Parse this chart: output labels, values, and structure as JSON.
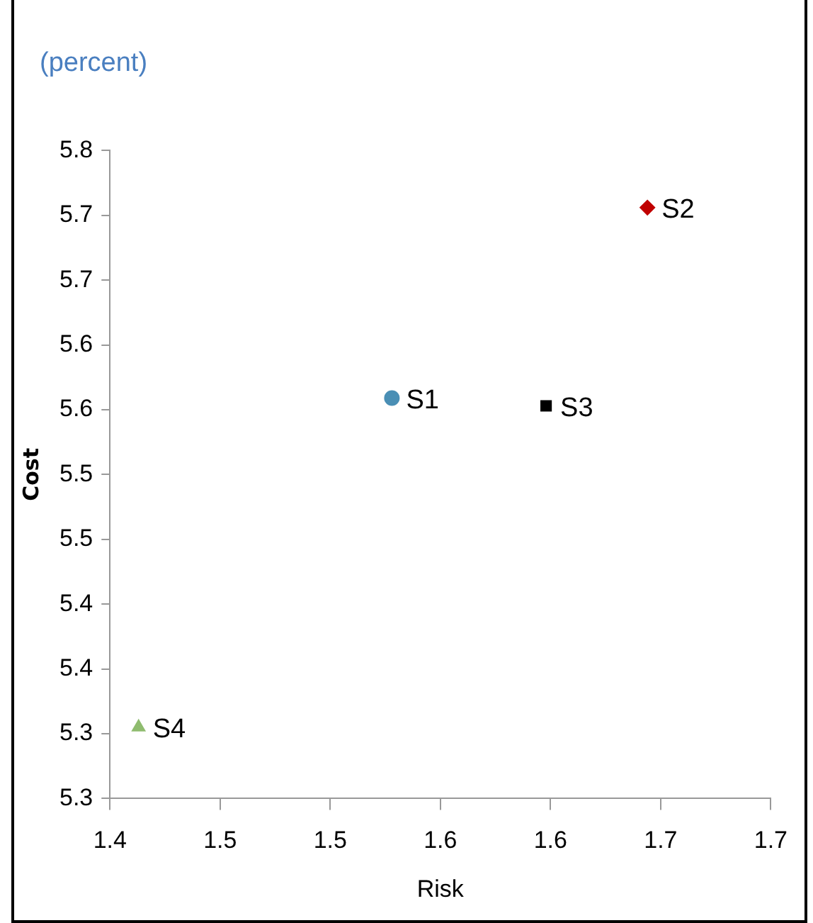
{
  "chart_data": {
    "type": "scatter",
    "subtitle": "(percent)",
    "xlabel": "Risk",
    "ylabel": "Cost",
    "series": [
      {
        "name": "S1",
        "color": "#4a8fb5",
        "marker": "circle",
        "x": [
          1.528
        ],
        "values": [
          5.559
        ]
      },
      {
        "name": "S2",
        "color": "#c00000",
        "marker": "diamond",
        "x": [
          1.644
        ],
        "values": [
          5.706
        ]
      },
      {
        "name": "S3",
        "color": "#000000",
        "marker": "square",
        "x": [
          1.598
        ],
        "values": [
          5.553
        ]
      },
      {
        "name": "S4",
        "color": "#8fbc6f",
        "marker": "triangle",
        "x": [
          1.413
        ],
        "values": [
          5.305
        ]
      }
    ],
    "xlim": [
      1.4,
      1.7
    ],
    "xticks": [
      {
        "value": 1.4,
        "label": "1.4"
      },
      {
        "value": 1.45,
        "label": "1.5"
      },
      {
        "value": 1.5,
        "label": "1.5"
      },
      {
        "value": 1.55,
        "label": "1.6"
      },
      {
        "value": 1.6,
        "label": "1.6"
      },
      {
        "value": 1.65,
        "label": "1.7"
      },
      {
        "value": 1.7,
        "label": "1.7"
      }
    ],
    "ylim": [
      5.25,
      5.75
    ],
    "yticks": [
      {
        "value": 5.25,
        "label": "5.3"
      },
      {
        "value": 5.3,
        "label": "5.3"
      },
      {
        "value": 5.35,
        "label": "5.4"
      },
      {
        "value": 5.4,
        "label": "5.4"
      },
      {
        "value": 5.45,
        "label": "5.5"
      },
      {
        "value": 5.5,
        "label": "5.5"
      },
      {
        "value": 5.55,
        "label": "5.6"
      },
      {
        "value": 5.6,
        "label": "5.6"
      },
      {
        "value": 5.65,
        "label": "5.7"
      },
      {
        "value": 5.7,
        "label": "5.7"
      },
      {
        "value": 5.75,
        "label": "5.8"
      }
    ],
    "grid": false,
    "legend": false
  }
}
